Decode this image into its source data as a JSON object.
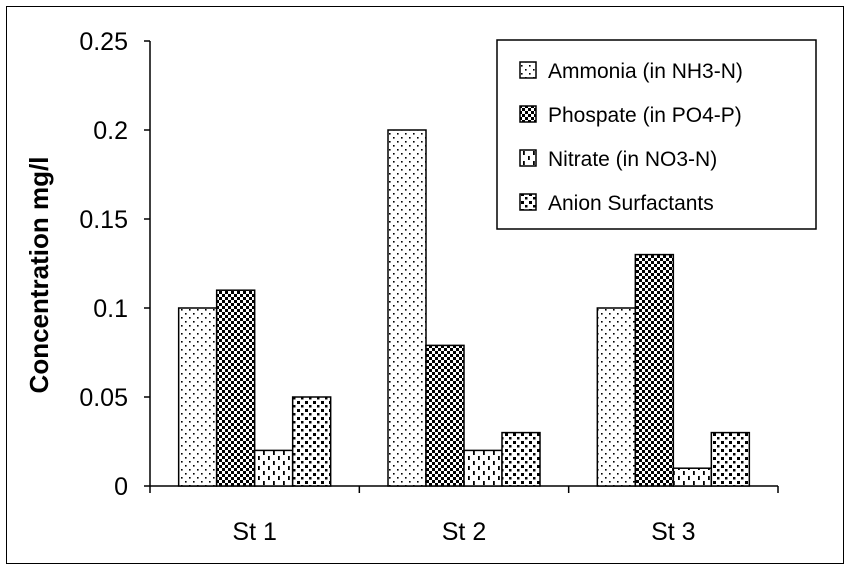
{
  "chart_data": {
    "type": "bar",
    "title": "",
    "xlabel": "",
    "ylabel": "Concentration mg/l",
    "ylim": [
      0,
      0.25
    ],
    "yticks": [
      "0",
      "0.05",
      "0.1",
      "0.15",
      "0.2",
      "0.25"
    ],
    "categories": [
      "St 1",
      "St 2",
      "St 3"
    ],
    "series": [
      {
        "name": "Ammonia (in NH3-N)",
        "values": [
          0.1,
          0.2,
          0.1
        ],
        "pattern": "dots-sparse"
      },
      {
        "name": "Phospate (in PO4-P)",
        "values": [
          0.11,
          0.079,
          0.13
        ],
        "pattern": "checker-dense"
      },
      {
        "name": "Nitrate (in NO3-N)",
        "values": [
          0.02,
          0.02,
          0.01
        ],
        "pattern": "dashes-vertical"
      },
      {
        "name": "Anion Surfactants",
        "values": [
          0.05,
          0.03,
          0.03
        ],
        "pattern": "squares"
      }
    ],
    "legend_position": "top-right",
    "grid": false,
    "colors": {
      "stroke": "#000000",
      "fill": "#ffffff"
    }
  }
}
